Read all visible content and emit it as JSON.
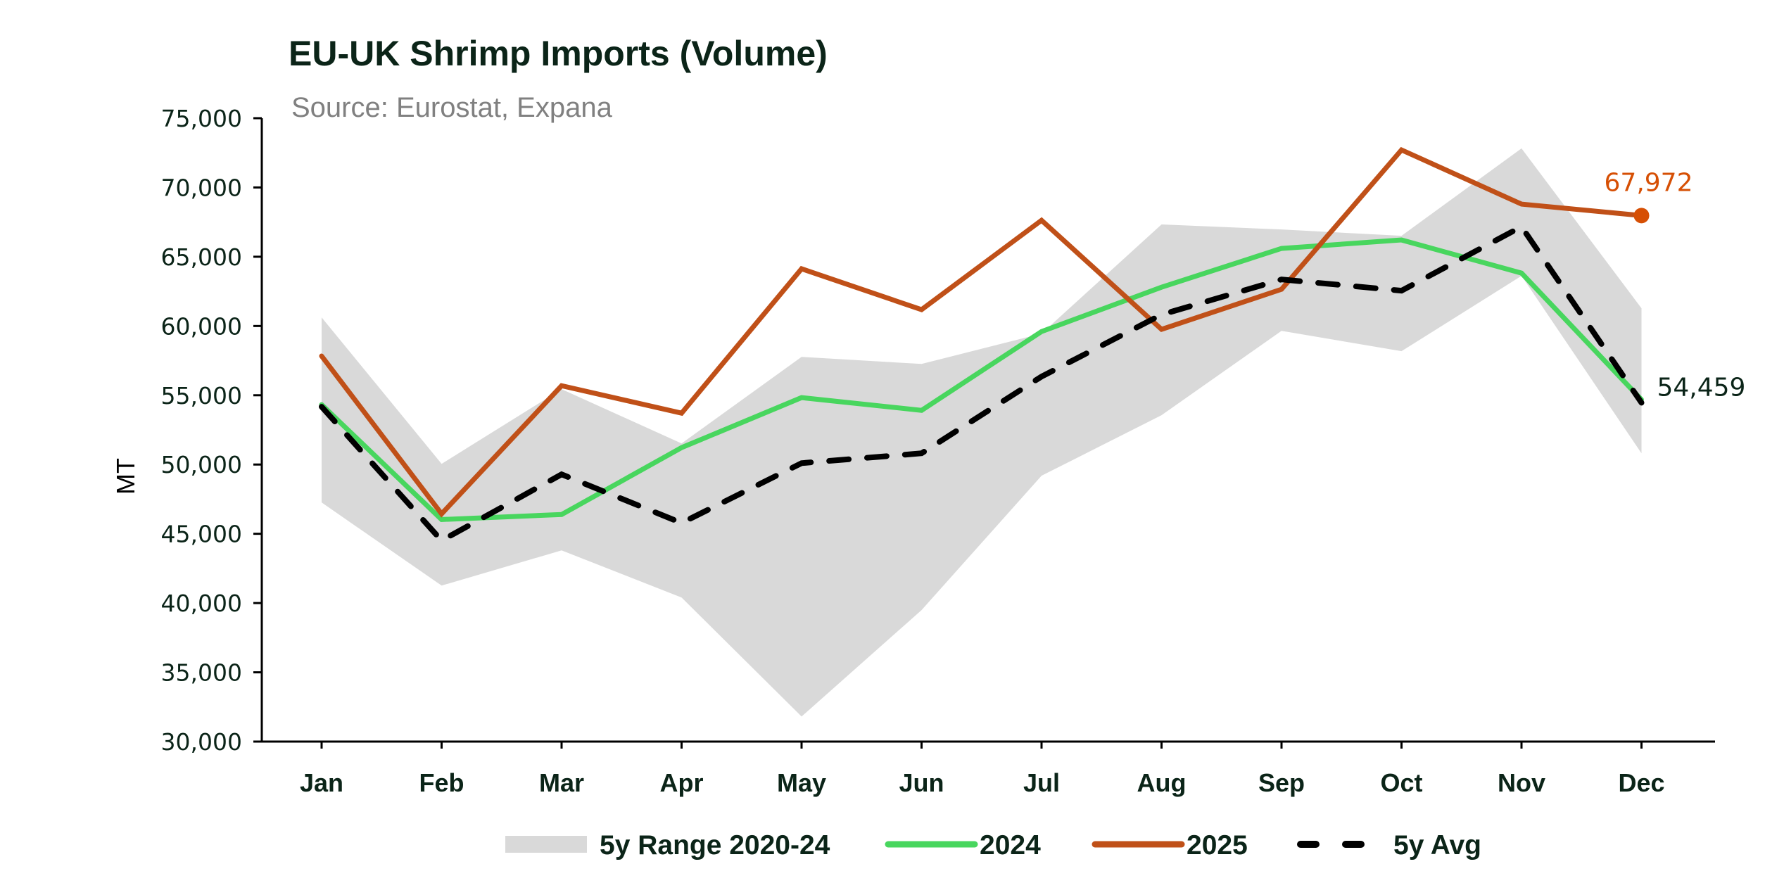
{
  "chart_data": {
    "type": "line",
    "title": "EU-UK Shrimp Imports (Volume)",
    "subtitle": "Source: Eurostat, Expana",
    "xlabel": "",
    "ylabel": "MT",
    "ylim": [
      30000,
      75000
    ],
    "yticks": [
      30000,
      35000,
      40000,
      45000,
      50000,
      55000,
      60000,
      65000,
      70000,
      75000
    ],
    "ytick_labels": [
      "30,000",
      "35,000",
      "40,000",
      "45,000",
      "50,000",
      "55,000",
      "60,000",
      "65,000",
      "70,000",
      "75,000"
    ],
    "categories": [
      "Jan",
      "Feb",
      "Mar",
      "Apr",
      "May",
      "Jun",
      "Jul",
      "Aug",
      "Sep",
      "Oct",
      "Nov",
      "Dec"
    ],
    "grid": false,
    "legend_position": "bottom-center",
    "range_band": {
      "name": "5y Range 2020-24",
      "color": "#D9D9D9",
      "upper": [
        60620,
        50050,
        55440,
        51520,
        57770,
        57260,
        59450,
        67330,
        66970,
        66510,
        72820,
        61280
      ],
      "lower": [
        47260,
        41260,
        43800,
        40400,
        31810,
        39490,
        49190,
        53560,
        59650,
        58180,
        63620,
        50810
      ]
    },
    "series": [
      {
        "name": "2024",
        "color": "#48D65E",
        "style": "solid",
        "values": [
          54320,
          46030,
          46390,
          51220,
          54830,
          53910,
          59600,
          62800,
          65600,
          66210,
          63820,
          54680
        ]
      },
      {
        "name": "2025",
        "color": "#C05018",
        "style": "solid",
        "values": [
          57830,
          46440,
          55690,
          53710,
          64130,
          61180,
          67630,
          59760,
          62650,
          72710,
          68800,
          67972
        ],
        "end_marker_color": "#D64F04"
      },
      {
        "name": "5y Avg",
        "color": "#000000",
        "style": "dashed",
        "values": [
          54170,
          44510,
          49290,
          45780,
          50100,
          50810,
          56350,
          60820,
          63360,
          62550,
          67170,
          54459
        ]
      }
    ],
    "annotations": [
      {
        "series": "2025",
        "category": "Dec",
        "text": "67,972",
        "color": "#D64F04"
      },
      {
        "series": "5y Avg",
        "category": "Dec",
        "text": "54,459",
        "color": "#0B2418"
      }
    ],
    "legend": [
      {
        "label": "5y Range 2020-24",
        "kind": "band",
        "color": "#D9D9D9"
      },
      {
        "label": "2024",
        "kind": "line",
        "color": "#48D65E"
      },
      {
        "label": "2025",
        "kind": "line",
        "color": "#C05018"
      },
      {
        "label": "5y Avg",
        "kind": "dashed",
        "color": "#000000"
      }
    ]
  }
}
